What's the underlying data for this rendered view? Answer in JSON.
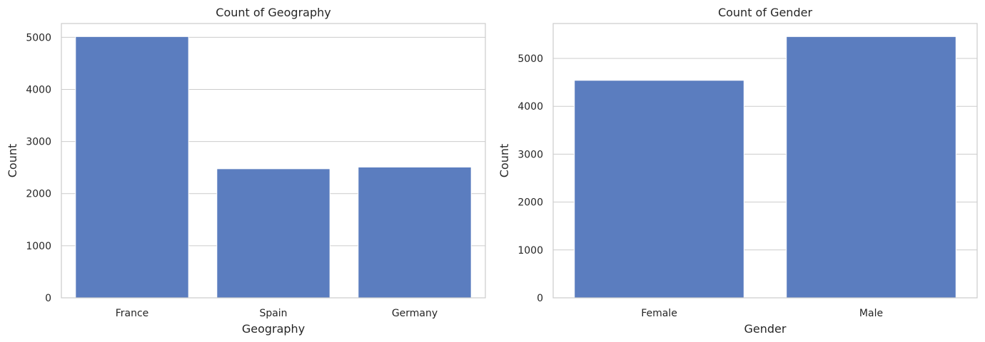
{
  "chart_data": [
    {
      "type": "bar",
      "title": "Count of Geography",
      "xlabel": "Geography",
      "ylabel": "Count",
      "categories": [
        "France",
        "Spain",
        "Germany"
      ],
      "values": [
        5014,
        2477,
        2509
      ],
      "ylim": [
        0,
        5264.7
      ],
      "yticks": [
        0,
        1000,
        2000,
        3000,
        4000,
        5000
      ],
      "grid": true,
      "color": "#5b7dbf"
    },
    {
      "type": "bar",
      "title": "Count of Gender",
      "xlabel": "Gender",
      "ylabel": "Count",
      "categories": [
        "Female",
        "Male"
      ],
      "values": [
        4543,
        5457
      ],
      "ylim": [
        0,
        5729.85
      ],
      "yticks": [
        0,
        1000,
        2000,
        3000,
        4000,
        5000
      ],
      "grid": true,
      "color": "#5b7dbf"
    }
  ]
}
